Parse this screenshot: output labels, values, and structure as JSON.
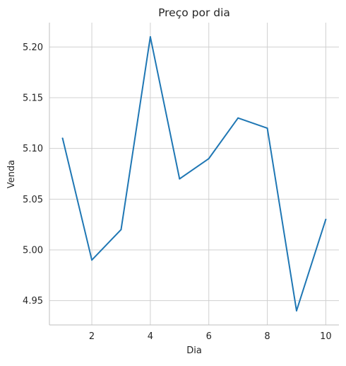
{
  "chart_data": {
    "type": "line",
    "title": "Preço por dia",
    "xlabel": "Dia",
    "ylabel": "Venda",
    "xlim": [
      0.55,
      10.45
    ],
    "ylim": [
      4.926,
      5.224
    ],
    "x_ticks": [
      2,
      4,
      6,
      8,
      10
    ],
    "x_tick_labels": [
      "2",
      "4",
      "6",
      "8",
      "10"
    ],
    "y_ticks": [
      4.95,
      5.0,
      5.05,
      5.1,
      5.15,
      5.2
    ],
    "y_tick_labels": [
      "4.95",
      "5.00",
      "5.05",
      "5.10",
      "5.15",
      "5.20"
    ],
    "grid": true,
    "legend": "none",
    "series": [
      {
        "color": "#1f77b4",
        "x": [
          1,
          2,
          3,
          4,
          5,
          6,
          7,
          8,
          9,
          10
        ],
        "values": [
          5.11,
          4.99,
          5.02,
          5.21,
          5.07,
          5.09,
          5.13,
          5.12,
          4.94,
          5.03
        ]
      }
    ]
  }
}
